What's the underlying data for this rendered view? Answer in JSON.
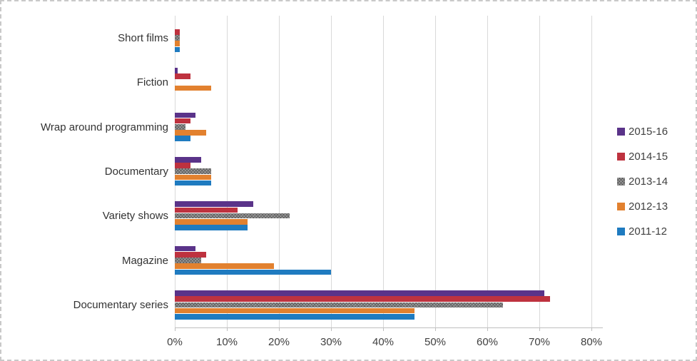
{
  "chart_data": {
    "type": "bar",
    "orientation": "horizontal",
    "title": "",
    "categories": [
      "Short films",
      "Fiction",
      "Wrap around programming",
      "Documentary",
      "Variety shows",
      "Magazine",
      "Documentary series"
    ],
    "series": [
      {
        "name": "2015-16",
        "color": "#5A3389",
        "pattern": "solid",
        "values": [
          0,
          0.5,
          4,
          5,
          15,
          4,
          71
        ]
      },
      {
        "name": "2014-15",
        "color": "#BE323F",
        "pattern": "solid",
        "values": [
          1,
          3,
          3,
          3,
          12,
          6,
          72
        ]
      },
      {
        "name": "2013-14",
        "color": "#9B9B9B",
        "pattern": "crosshatch",
        "values": [
          1,
          0,
          2,
          7,
          22,
          5,
          63
        ]
      },
      {
        "name": "2012-13",
        "color": "#E2812F",
        "pattern": "solid",
        "values": [
          1,
          7,
          6,
          7,
          14,
          19,
          46
        ]
      },
      {
        "name": "2011-12",
        "color": "#1F7BC0",
        "pattern": "solid",
        "values": [
          1,
          0,
          3,
          7,
          14,
          30,
          46
        ]
      }
    ],
    "x_axis": {
      "min": 0,
      "max": 80,
      "tick_step": 10,
      "tick_labels": [
        "0%",
        "10%",
        "20%",
        "30%",
        "40%",
        "50%",
        "60%",
        "70%",
        "80%"
      ]
    },
    "legend": {
      "position": "right",
      "entries": [
        "2015-16",
        "2014-15",
        "2013-14",
        "2012-13",
        "2011-12"
      ]
    },
    "grid": true,
    "colors": {
      "gridline": "#D9D9D9",
      "axis_line": "#BFBFBF",
      "category_text": "#333333",
      "tick_text": "#404040",
      "legend_text": "#404040",
      "background": "#FFFFFF",
      "frame_border": "#C9C9C9"
    }
  }
}
